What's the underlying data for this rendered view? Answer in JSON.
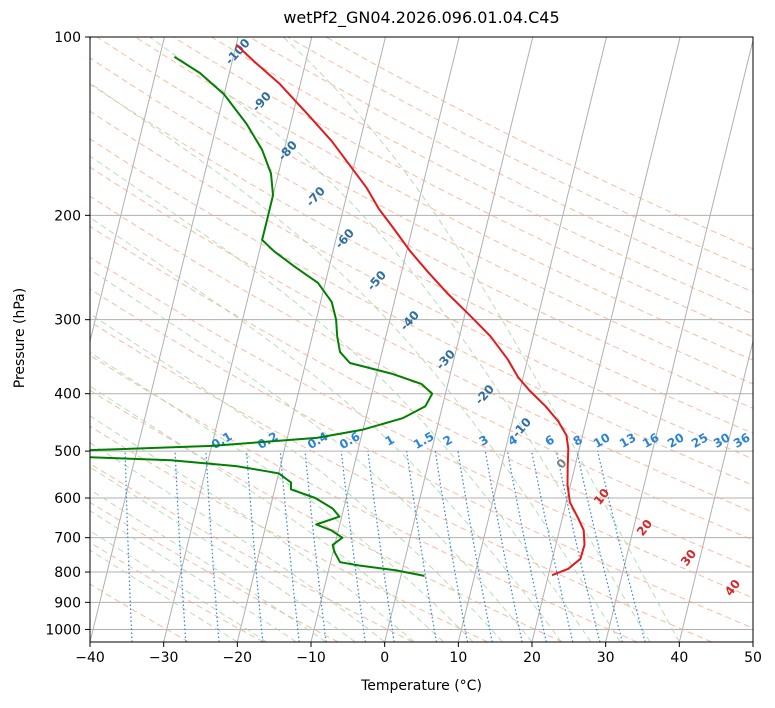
{
  "chart_data": {
    "type": "line",
    "title": "wetPf2_GN04.2026.096.01.04.C45",
    "xlabel": "Temperature (°C)",
    "ylabel": "Pressure (hPa)",
    "xlim": [
      -40,
      50
    ],
    "ylim": [
      1050,
      100
    ],
    "y_scale": "log",
    "grid": true,
    "x_ticks": [
      -40,
      -30,
      -20,
      -10,
      0,
      10,
      20,
      30,
      40,
      50
    ],
    "y_ticks": [
      100,
      200,
      300,
      400,
      500,
      600,
      700,
      800,
      900,
      1000
    ],
    "background_lines": {
      "isotherms_color": "#b0b0b0",
      "dry_adiabats_color": "#f4a582",
      "moist_adiabats_color": "#a6d5a6",
      "mixing_ratio_color": "#2b83d6",
      "moist_adiabat_label_color": "#2f6f9f",
      "dry_adiabat_label_color": "#d62728",
      "isotherm_label_color": "#808080",
      "moist_adiabat_labels": [
        "-100",
        "-90",
        "-80",
        "-70",
        "-60",
        "-50",
        "-40",
        "-30",
        "-20",
        "-10",
        "0"
      ],
      "mixing_ratio_labels": [
        "0.1",
        "0.2",
        "0.4",
        "0.6",
        "1",
        "1.5",
        "2",
        "3",
        "4",
        "6",
        "8",
        "10",
        "13",
        "16",
        "20",
        "25",
        "30",
        "36"
      ],
      "dry_adiabat_labels": [
        "10",
        "20",
        "30",
        "40"
      ]
    },
    "series": [
      {
        "name": "",
        "color": "#e31a1c",
        "points": [
          {
            "p": 810,
            "t": 20.5
          },
          {
            "p": 790,
            "t": 22.5
          },
          {
            "p": 760,
            "t": 23.8
          },
          {
            "p": 720,
            "t": 23.9
          },
          {
            "p": 680,
            "t": 23.3
          },
          {
            "p": 650,
            "t": 22.2
          },
          {
            "p": 610,
            "t": 20.5
          },
          {
            "p": 570,
            "t": 19.6
          },
          {
            "p": 530,
            "t": 19.0
          },
          {
            "p": 495,
            "t": 18.5
          },
          {
            "p": 470,
            "t": 17.8
          },
          {
            "p": 445,
            "t": 16.2
          },
          {
            "p": 420,
            "t": 14.0
          },
          {
            "p": 395,
            "t": 11.3
          },
          {
            "p": 375,
            "t": 9.3
          },
          {
            "p": 350,
            "t": 7.3
          },
          {
            "p": 320,
            "t": 4.2
          },
          {
            "p": 295,
            "t": 0.7
          },
          {
            "p": 270,
            "t": -3.2
          },
          {
            "p": 250,
            "t": -6.3
          },
          {
            "p": 230,
            "t": -9.5
          },
          {
            "p": 210,
            "t": -12.6
          },
          {
            "p": 195,
            "t": -15.2
          },
          {
            "p": 180,
            "t": -17.5
          },
          {
            "p": 165,
            "t": -20.5
          },
          {
            "p": 150,
            "t": -23.8
          },
          {
            "p": 135,
            "t": -28.0
          },
          {
            "p": 120,
            "t": -32.8
          },
          {
            "p": 110,
            "t": -37.0
          },
          {
            "p": 103,
            "t": -40.0
          }
        ]
      },
      {
        "name": "",
        "color": "#008000",
        "points": [
          {
            "p": 812,
            "t": 3.2
          },
          {
            "p": 795,
            "t": -0.8
          },
          {
            "p": 780,
            "t": -6.0
          },
          {
            "p": 770,
            "t": -8.7
          },
          {
            "p": 740,
            "t": -9.8
          },
          {
            "p": 720,
            "t": -10.3
          },
          {
            "p": 700,
            "t": -9.2
          },
          {
            "p": 680,
            "t": -11.0
          },
          {
            "p": 665,
            "t": -13.2
          },
          {
            "p": 645,
            "t": -10.3
          },
          {
            "p": 625,
            "t": -11.5
          },
          {
            "p": 600,
            "t": -14.2
          },
          {
            "p": 580,
            "t": -17.8
          },
          {
            "p": 565,
            "t": -18.0
          },
          {
            "p": 545,
            "t": -20.0
          },
          {
            "p": 530,
            "t": -26.0
          },
          {
            "p": 518,
            "t": -35.0
          },
          {
            "p": 510,
            "t": -50.0
          },
          {
            "p": 506,
            "t": -62.0
          },
          {
            "p": 500,
            "t": -50.0
          },
          {
            "p": 490,
            "t": -30.0
          },
          {
            "p": 475,
            "t": -16.0
          },
          {
            "p": 460,
            "t": -10.0
          },
          {
            "p": 440,
            "t": -5.0
          },
          {
            "p": 420,
            "t": -2.3
          },
          {
            "p": 400,
            "t": -1.8
          },
          {
            "p": 385,
            "t": -3.6
          },
          {
            "p": 370,
            "t": -8.0
          },
          {
            "p": 355,
            "t": -14.0
          },
          {
            "p": 340,
            "t": -15.7
          },
          {
            "p": 320,
            "t": -16.6
          },
          {
            "p": 300,
            "t": -17.3
          },
          {
            "p": 280,
            "t": -18.5
          },
          {
            "p": 260,
            "t": -21.0
          },
          {
            "p": 245,
            "t": -24.5
          },
          {
            "p": 230,
            "t": -28.0
          },
          {
            "p": 220,
            "t": -30.0
          },
          {
            "p": 205,
            "t": -30.0
          },
          {
            "p": 185,
            "t": -30.0
          },
          {
            "p": 170,
            "t": -31.0
          },
          {
            "p": 155,
            "t": -33.0
          },
          {
            "p": 140,
            "t": -36.0
          },
          {
            "p": 125,
            "t": -40.0
          },
          {
            "p": 115,
            "t": -44.0
          },
          {
            "p": 108,
            "t": -48.0
          }
        ]
      }
    ]
  }
}
